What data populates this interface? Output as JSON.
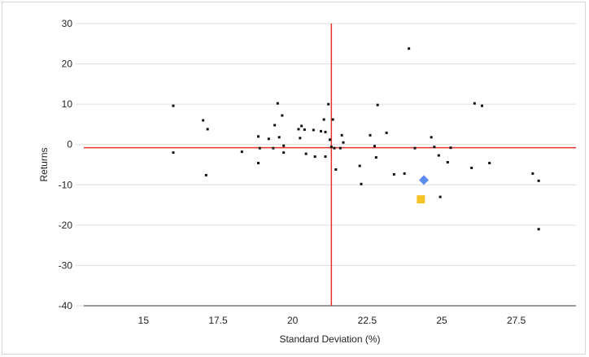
{
  "chart_data": {
    "type": "scatter",
    "title": "",
    "xlabel": "Standard Deviation (%)",
    "ylabel": "Returns",
    "xlim": [
      13,
      29.5
    ],
    "ylim": [
      -40,
      30
    ],
    "xticks": [
      15,
      17.5,
      20,
      22.5,
      25,
      27.5
    ],
    "yticks": [
      30,
      20,
      10,
      0,
      -10,
      -20,
      -30,
      -40
    ],
    "xtick_labels": [
      "15",
      "17.5",
      "20",
      "22.5",
      "25",
      "27.5"
    ],
    "ytick_labels": [
      "30",
      "20",
      "10",
      "0",
      "-10",
      "-20",
      "-30",
      "-40"
    ],
    "grid": "horizontal",
    "reference_lines": {
      "vertical_x": 21.3,
      "horizontal_y": -0.8,
      "color": "#e8332b"
    },
    "series": [
      {
        "marker": "square-small",
        "color": "#111111",
        "points": [
          [
            16.0,
            9.6
          ],
          [
            16.0,
            -2.0
          ],
          [
            17.0,
            6.0
          ],
          [
            17.15,
            3.8
          ],
          [
            17.1,
            -7.6
          ],
          [
            18.3,
            -1.8
          ],
          [
            18.85,
            2.0
          ],
          [
            18.9,
            -0.9
          ],
          [
            18.85,
            -4.6
          ],
          [
            19.2,
            1.4
          ],
          [
            19.35,
            -0.9
          ],
          [
            19.4,
            4.8
          ],
          [
            19.5,
            10.2
          ],
          [
            19.55,
            1.8
          ],
          [
            19.65,
            7.2
          ],
          [
            19.7,
            -0.3
          ],
          [
            19.7,
            -2.0
          ],
          [
            20.2,
            3.8
          ],
          [
            20.3,
            4.6
          ],
          [
            20.25,
            1.6
          ],
          [
            20.4,
            3.7
          ],
          [
            20.45,
            -2.3
          ],
          [
            20.7,
            3.6
          ],
          [
            20.75,
            -3.0
          ],
          [
            20.95,
            3.3
          ],
          [
            21.05,
            6.2
          ],
          [
            21.1,
            -3.0
          ],
          [
            21.1,
            3.1
          ],
          [
            21.2,
            10.0
          ],
          [
            21.25,
            1.2
          ],
          [
            21.3,
            -0.6
          ],
          [
            21.35,
            6.2
          ],
          [
            21.4,
            -0.9
          ],
          [
            21.45,
            -6.2
          ],
          [
            21.6,
            -0.9
          ],
          [
            21.65,
            2.3
          ],
          [
            21.7,
            0.5
          ],
          [
            22.25,
            -5.3
          ],
          [
            22.3,
            -9.8
          ],
          [
            22.6,
            2.3
          ],
          [
            22.75,
            -0.4
          ],
          [
            22.8,
            -3.2
          ],
          [
            22.85,
            9.8
          ],
          [
            23.15,
            2.9
          ],
          [
            23.4,
            -7.4
          ],
          [
            23.75,
            -7.2
          ],
          [
            23.9,
            23.8
          ],
          [
            24.1,
            -0.9
          ],
          [
            24.65,
            1.8
          ],
          [
            24.75,
            -0.6
          ],
          [
            24.9,
            -2.7
          ],
          [
            24.95,
            -13.0
          ],
          [
            25.2,
            -4.4
          ],
          [
            25.3,
            -0.8
          ],
          [
            26.0,
            -5.8
          ],
          [
            26.1,
            10.2
          ],
          [
            26.35,
            9.6
          ],
          [
            26.6,
            -4.6
          ],
          [
            28.05,
            -7.2
          ],
          [
            28.25,
            -9.0
          ],
          [
            28.25,
            -21.0
          ]
        ]
      },
      {
        "marker": "diamond",
        "color": "#5b8def",
        "points": [
          [
            24.4,
            -8.8
          ]
        ]
      },
      {
        "marker": "square",
        "color": "#f5c324",
        "points": [
          [
            24.3,
            -13.6
          ]
        ]
      }
    ]
  }
}
